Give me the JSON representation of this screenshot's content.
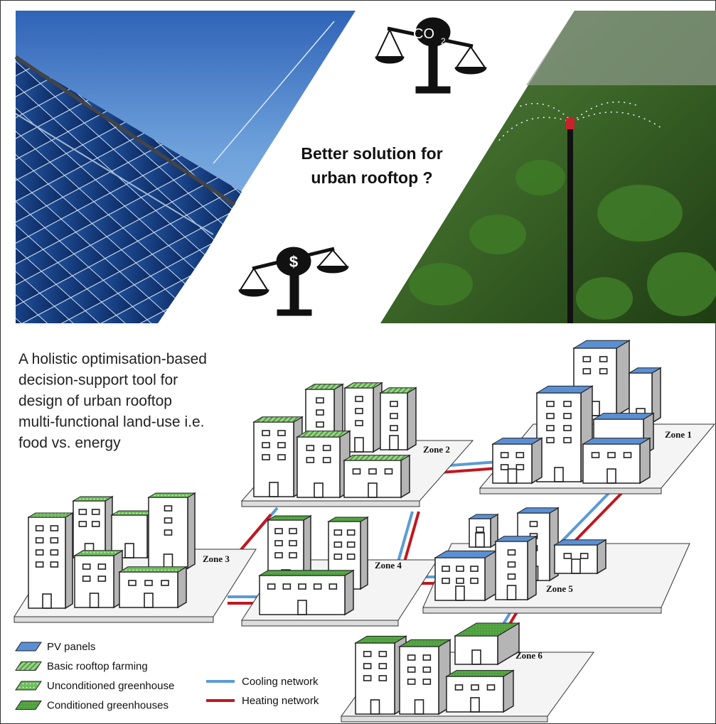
{
  "header": {
    "question": [
      "Better solution for",
      "urban rooftop ?"
    ],
    "co2_text": "CO",
    "co2_subscript": "2",
    "dollar_text": "$"
  },
  "description": [
    "A holistic optimisation-based",
    "decision-support tool for",
    "design of urban rooftop",
    "multi-functional land-use i.e.",
    "food vs. energy"
  ],
  "zones": [
    "Zone 1",
    "Zone 2",
    "Zone 3",
    "Zone 4",
    "Zone 5",
    "Zone 6"
  ],
  "legend": [
    "PV panels",
    "Basic rooftop farming",
    "Unconditioned greenhouse",
    "Conditioned greenhouses",
    "Cooling network",
    "Heating network"
  ]
}
